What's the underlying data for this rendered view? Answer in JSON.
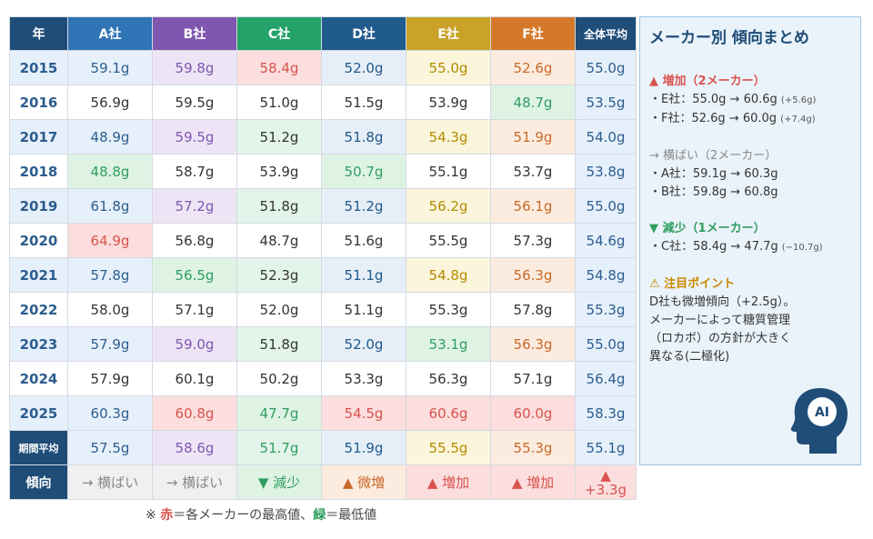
{
  "table": {
    "headers": [
      "年",
      "A社",
      "B社",
      "C社",
      "D社",
      "E社",
      "F社",
      "全体平均"
    ],
    "header_colors": [
      "#1f4d78",
      "#2f74b5",
      "#7f56b0",
      "#23a36a",
      "#215a8c",
      "#c9a227",
      "#d4792a",
      "#1f4d78"
    ],
    "rows": [
      {
        "year": "2015",
        "values": [
          "59.1g",
          "59.8g",
          "58.4g",
          "52.0g",
          "55.0g",
          "52.6g",
          "55.0g"
        ]
      },
      {
        "year": "2016",
        "values": [
          "56.9g",
          "59.5g",
          "51.0g",
          "51.5g",
          "53.9g",
          "48.7g",
          "53.5g"
        ]
      },
      {
        "year": "2017",
        "values": [
          "48.9g",
          "59.5g",
          "51.2g",
          "51.8g",
          "54.3g",
          "51.9g",
          "54.0g"
        ]
      },
      {
        "year": "2018",
        "values": [
          "48.8g",
          "58.7g",
          "53.9g",
          "50.7g",
          "55.1g",
          "53.7g",
          "53.8g"
        ]
      },
      {
        "year": "2019",
        "values": [
          "61.8g",
          "57.2g",
          "51.8g",
          "51.2g",
          "56.2g",
          "56.1g",
          "55.0g"
        ]
      },
      {
        "year": "2020",
        "values": [
          "64.9g",
          "56.8g",
          "48.7g",
          "51.6g",
          "55.5g",
          "57.3g",
          "54.6g"
        ]
      },
      {
        "year": "2021",
        "values": [
          "57.8g",
          "56.5g",
          "52.3g",
          "51.1g",
          "54.8g",
          "56.3g",
          "54.8g"
        ]
      },
      {
        "year": "2022",
        "values": [
          "58.0g",
          "57.1g",
          "52.0g",
          "51.1g",
          "55.3g",
          "57.8g",
          "55.3g"
        ]
      },
      {
        "year": "2023",
        "values": [
          "57.9g",
          "59.0g",
          "51.8g",
          "52.0g",
          "53.1g",
          "56.3g",
          "55.0g"
        ]
      },
      {
        "year": "2024",
        "values": [
          "57.9g",
          "60.1g",
          "50.2g",
          "53.3g",
          "56.3g",
          "57.1g",
          "56.4g"
        ]
      },
      {
        "year": "2025",
        "values": [
          "60.3g",
          "60.8g",
          "47.7g",
          "54.5g",
          "60.6g",
          "60.0g",
          "58.3g"
        ]
      }
    ],
    "period_avg_label": "期間平均",
    "period_avg": [
      "57.5g",
      "58.6g",
      "51.7g",
      "51.9g",
      "55.5g",
      "55.3g",
      "55.1g"
    ],
    "trend_label": "傾向",
    "trends": [
      "→ 横ばい",
      "→ 横ばい",
      "▼ 減少",
      "▲ 微増",
      "▲ 増加",
      "▲ 増加",
      "▲ +3.3g"
    ]
  },
  "note": {
    "prefix": "※ ",
    "red": "赤",
    "mid": "＝各メーカーの最高値、",
    "green": "緑",
    "suffix": "＝最低値"
  },
  "panel": {
    "title": "メーカー別 傾向まとめ",
    "increase": {
      "head": "▲ 増加（2メーカー）",
      "items": [
        {
          "text": "・E社：55.0g → 60.6g",
          "delta": "(+5.6g)"
        },
        {
          "text": "・F社：52.6g → 60.0g",
          "delta": "(+7.4g)"
        }
      ]
    },
    "flat": {
      "head": "→ 横ばい（2メーカー）",
      "items": [
        {
          "text": "・A社：59.1g → 60.3g",
          "delta": ""
        },
        {
          "text": "・B社：59.8g → 60.8g",
          "delta": ""
        }
      ]
    },
    "decrease": {
      "head": "▼ 減少（1メーカー）",
      "items": [
        {
          "text": "・C社：58.4g → 47.7g",
          "delta": "(−10.7g)"
        }
      ]
    },
    "warning": {
      "head": "⚠ 注目ポイント",
      "lines": [
        "D社も微増傾向（+2.5g）。",
        "メーカーによって糖質管理",
        "（ロカボ）の方針が大きく",
        "異なる(二極化)"
      ]
    },
    "ai_label": "AI"
  }
}
